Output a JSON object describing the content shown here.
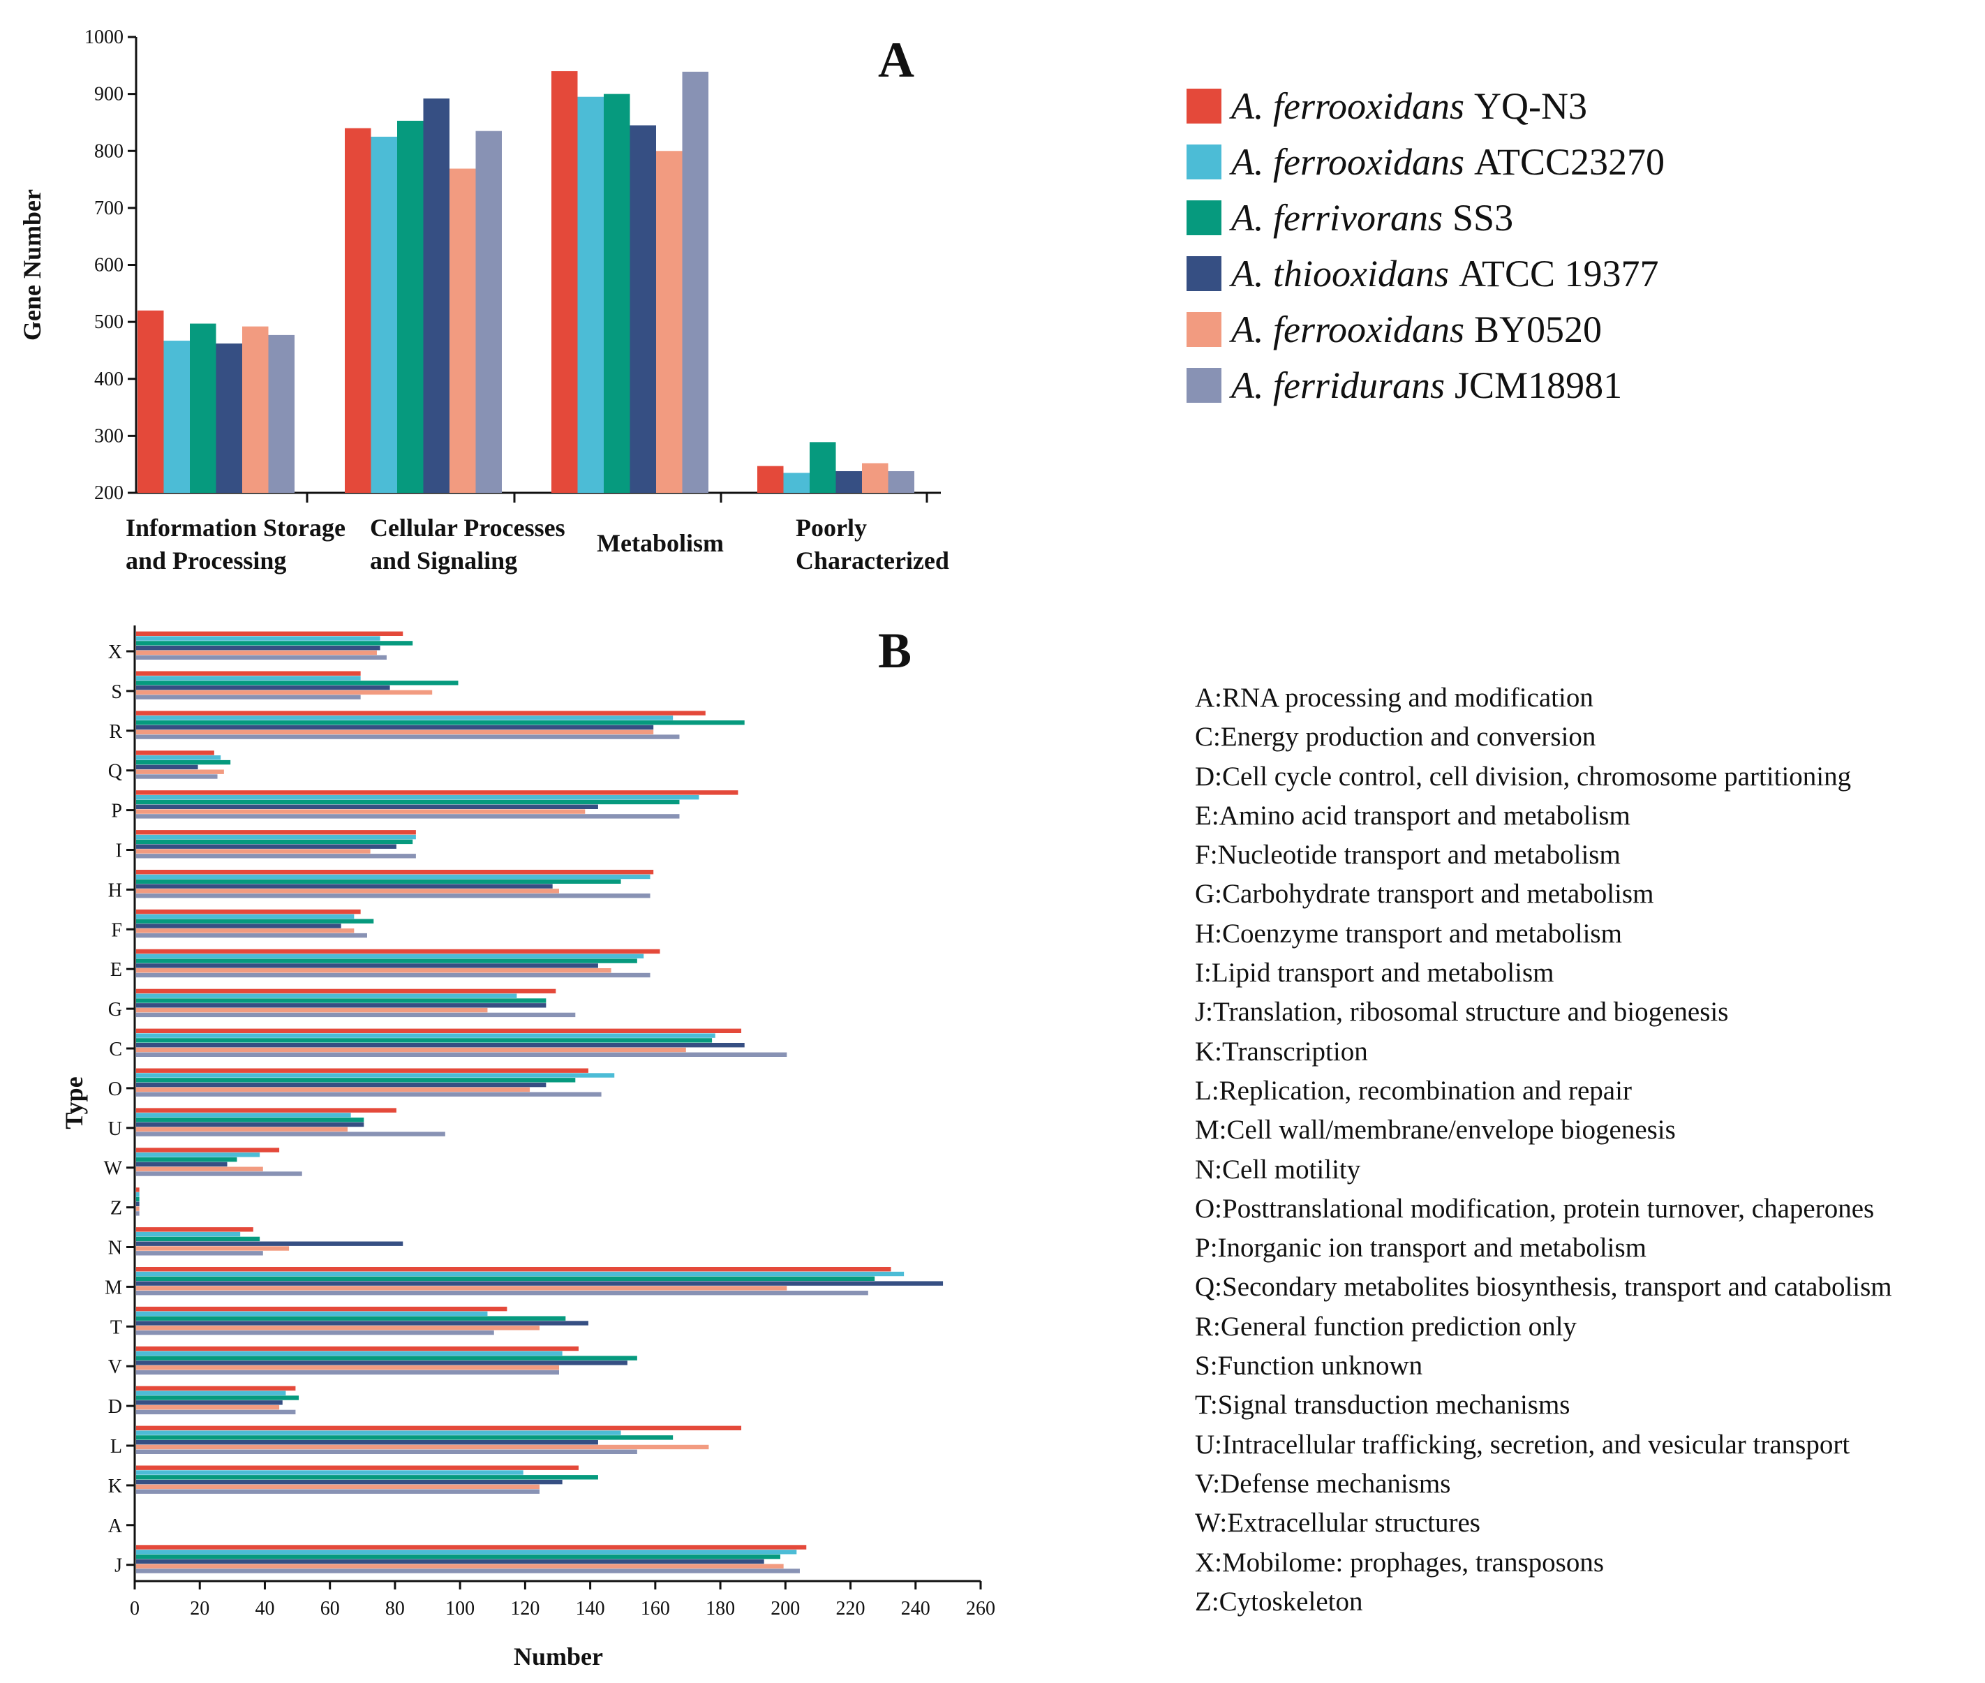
{
  "legend": {
    "items": [
      {
        "genus": "A. ferrooxidans",
        "strain": "YQ-N3",
        "color": "#e4493a"
      },
      {
        "genus": "A. ferrooxidans",
        "strain": "ATCC23270",
        "color": "#4cbcd6"
      },
      {
        "genus": "A. ferrivorans",
        "strain": "SS3",
        "color": "#069a7e"
      },
      {
        "genus": "A. thiooxidans",
        "strain": "ATCC 19377",
        "color": "#364f83"
      },
      {
        "genus": "A. ferrooxidans",
        "strain": "BY0520",
        "color": "#f29b80"
      },
      {
        "genus": "A. ferridurans",
        "strain": "JCM18981",
        "color": "#8892b4"
      }
    ]
  },
  "category_list": [
    "A:RNA processing and modification",
    "C:Energy production and conversion",
    "D:Cell cycle control, cell division, chromosome partitioning",
    "E:Amino acid transport and metabolism",
    "F:Nucleotide transport and metabolism",
    "G:Carbohydrate transport and metabolism",
    "H:Coenzyme transport and metabolism",
    "I:Lipid transport and metabolism",
    "J:Translation, ribosomal structure and biogenesis",
    "K:Transcription",
    "L:Replication, recombination and repair",
    "M:Cell wall/membrane/envelope biogenesis",
    "N:Cell motility",
    "O:Posttranslational modification, protein turnover, chaperones",
    "P:Inorganic ion transport and metabolism",
    "Q:Secondary metabolites biosynthesis, transport and catabolism",
    "R:General function prediction only",
    "S:Function unknown",
    "T:Signal transduction mechanisms",
    "U:Intracellular trafficking, secretion, and vesicular transport",
    "V:Defense mechanisms",
    "W:Extracellular structures",
    " X:Mobilome: prophages, transposons",
    " Z:Cytoskeleton"
  ],
  "chart_data": [
    {
      "panel": "A",
      "type": "bar",
      "orientation": "vertical",
      "title": "",
      "xlabel": "",
      "ylabel": "Gene Number",
      "ylim": [
        200,
        1000
      ],
      "yticks": [
        200,
        300,
        400,
        500,
        600,
        700,
        800,
        900,
        1000
      ],
      "categories": [
        [
          "Information Storage",
          "and Processing"
        ],
        [
          "Cellular Processes",
          "and  Signaling"
        ],
        [
          "Metabolism"
        ],
        [
          "Poorly",
          "Characterized"
        ]
      ],
      "series": [
        {
          "name": "A. ferrooxidans YQ-N3",
          "values": [
            520,
            840,
            940,
            247
          ]
        },
        {
          "name": "A. ferrooxidans ATCC23270",
          "values": [
            467,
            825,
            895,
            235
          ]
        },
        {
          "name": "A. ferrivorans SS3",
          "values": [
            497,
            853,
            900,
            289
          ]
        },
        {
          "name": "A. thiooxidans ATCC 19377",
          "values": [
            462,
            892,
            845,
            238
          ]
        },
        {
          "name": "A. ferrooxidans BY0520",
          "values": [
            492,
            769,
            800,
            252
          ]
        },
        {
          "name": "A. ferridurans JCM18981",
          "values": [
            477,
            835,
            939,
            238
          ]
        }
      ],
      "legend_position": "right"
    },
    {
      "panel": "B",
      "type": "bar",
      "orientation": "horizontal",
      "title": "",
      "xlabel": "Number",
      "ylabel": "Type",
      "xlim": [
        0,
        260
      ],
      "xticks": [
        0,
        20,
        40,
        60,
        80,
        100,
        120,
        140,
        160,
        180,
        200,
        220,
        240,
        260
      ],
      "categories": [
        "X",
        "S",
        "R",
        "Q",
        "P",
        "I",
        "H",
        "F",
        "E",
        "G",
        "C",
        "O",
        "U",
        "W",
        "Z",
        "N",
        "M",
        "T",
        "V",
        "D",
        "L",
        "K",
        "A",
        "J"
      ],
      "series": [
        {
          "name": "A. ferrooxidans YQ-N3",
          "values": [
            82,
            69,
            175,
            24,
            185,
            86,
            159,
            69,
            161,
            129,
            186,
            139,
            80,
            44,
            1,
            36,
            232,
            114,
            136,
            49,
            186,
            136,
            0,
            206
          ]
        },
        {
          "name": "A. ferrooxidans ATCC23270",
          "values": [
            75,
            69,
            165,
            26,
            173,
            86,
            158,
            67,
            156,
            117,
            178,
            147,
            66,
            38,
            1,
            32,
            236,
            108,
            131,
            46,
            149,
            119,
            0,
            203
          ]
        },
        {
          "name": "A. ferrivorans SS3",
          "values": [
            85,
            99,
            187,
            29,
            167,
            85,
            149,
            73,
            154,
            126,
            177,
            135,
            70,
            31,
            1,
            38,
            227,
            132,
            154,
            50,
            165,
            142,
            0,
            198
          ]
        },
        {
          "name": "A. thiooxidans ATCC 19377",
          "values": [
            75,
            78,
            159,
            19,
            142,
            80,
            128,
            63,
            142,
            126,
            187,
            126,
            70,
            28,
            1,
            82,
            248,
            139,
            151,
            45,
            142,
            131,
            0,
            193
          ]
        },
        {
          "name": "A. ferrooxidans BY0520",
          "values": [
            74,
            91,
            159,
            27,
            138,
            72,
            130,
            67,
            146,
            108,
            169,
            121,
            65,
            39,
            1,
            47,
            200,
            124,
            130,
            44,
            176,
            124,
            0,
            199
          ]
        },
        {
          "name": "A. ferridurans JCM18981",
          "values": [
            77,
            69,
            167,
            25,
            167,
            86,
            158,
            71,
            158,
            135,
            200,
            143,
            95,
            51,
            1,
            39,
            225,
            110,
            130,
            49,
            154,
            124,
            0,
            204
          ]
        }
      ]
    }
  ]
}
